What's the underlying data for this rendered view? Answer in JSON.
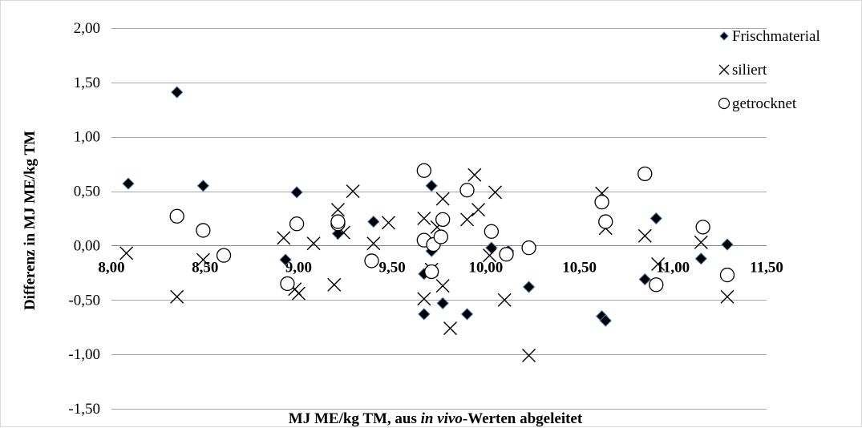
{
  "chart_data": {
    "type": "scatter",
    "xlabel_parts": [
      {
        "text": "MJ ME/kg TM, aus ",
        "italic": false
      },
      {
        "text": "in vivo",
        "italic": true
      },
      {
        "text": "-Werten abgeleitet",
        "italic": false
      }
    ],
    "ylabel": "Differenz in MJ ME/kg TM",
    "xlim": [
      8.0,
      11.5
    ],
    "ylim": [
      -1.5,
      2.0
    ],
    "x_ticks": [
      8.0,
      8.5,
      9.0,
      9.5,
      10.0,
      10.5,
      11.0,
      11.5
    ],
    "x_tick_labels": [
      "8,00",
      "8,50",
      "9,00",
      "9,50",
      "10,00",
      "10,50",
      "11,00",
      "11,50"
    ],
    "y_ticks": [
      2.0,
      1.5,
      1.0,
      0.5,
      0.0,
      -0.5,
      -1.0,
      -1.5
    ],
    "y_tick_labels": [
      "2,00",
      "1,50",
      "1,00",
      "0,50",
      "0,00",
      "-0,50",
      "-1,00",
      "-1,50"
    ],
    "grid": "horizontal",
    "legend_position": "right",
    "series": [
      {
        "name": "Frischmaterial",
        "marker": "diamond",
        "color": "#000000",
        "points": [
          [
            8.09,
            0.57
          ],
          [
            8.35,
            1.41
          ],
          [
            8.49,
            0.55
          ],
          [
            8.93,
            -0.13
          ],
          [
            8.99,
            0.49
          ],
          [
            9.21,
            0.11
          ],
          [
            9.4,
            0.22
          ],
          [
            9.67,
            -0.26
          ],
          [
            9.67,
            -0.63
          ],
          [
            9.71,
            -0.05
          ],
          [
            9.71,
            0.55
          ],
          [
            9.77,
            -0.53
          ],
          [
            9.9,
            -0.63
          ],
          [
            10.03,
            -0.02
          ],
          [
            10.12,
            -0.05
          ],
          [
            10.23,
            -0.38
          ],
          [
            10.62,
            -0.65
          ],
          [
            10.64,
            -0.69
          ],
          [
            10.85,
            -0.31
          ],
          [
            10.91,
            0.25
          ],
          [
            11.15,
            -0.12
          ],
          [
            11.29,
            0.01
          ]
        ]
      },
      {
        "name": "siliert",
        "marker": "x",
        "color": "#000000",
        "points": [
          [
            8.08,
            -0.07
          ],
          [
            8.35,
            -0.47
          ],
          [
            8.49,
            -0.13
          ],
          [
            8.92,
            0.07
          ],
          [
            8.98,
            -0.4
          ],
          [
            9.0,
            -0.44
          ],
          [
            9.08,
            0.02
          ],
          [
            9.19,
            -0.36
          ],
          [
            9.21,
            0.33
          ],
          [
            9.24,
            0.12
          ],
          [
            9.29,
            0.5
          ],
          [
            9.4,
            0.02
          ],
          [
            9.48,
            0.21
          ],
          [
            9.67,
            -0.49
          ],
          [
            9.67,
            0.25
          ],
          [
            9.71,
            -0.22
          ],
          [
            9.74,
            0.17
          ],
          [
            9.77,
            -0.37
          ],
          [
            9.77,
            0.43
          ],
          [
            9.81,
            -0.76
          ],
          [
            9.9,
            0.24
          ],
          [
            9.94,
            0.65
          ],
          [
            9.96,
            0.33
          ],
          [
            10.02,
            -0.09
          ],
          [
            10.05,
            0.49
          ],
          [
            10.1,
            -0.5
          ],
          [
            10.23,
            -1.01
          ],
          [
            10.62,
            0.48
          ],
          [
            10.64,
            0.16
          ],
          [
            10.85,
            0.09
          ],
          [
            10.92,
            -0.17
          ],
          [
            11.15,
            0.03
          ],
          [
            11.29,
            -0.47
          ]
        ]
      },
      {
        "name": "getrocknet",
        "marker": "circle",
        "color": "#000000",
        "points": [
          [
            8.35,
            0.27
          ],
          [
            8.49,
            0.14
          ],
          [
            8.6,
            -0.09
          ],
          [
            8.94,
            -0.35
          ],
          [
            8.99,
            0.2
          ],
          [
            9.21,
            0.2
          ],
          [
            9.21,
            0.22
          ],
          [
            9.39,
            -0.14
          ],
          [
            9.67,
            0.05
          ],
          [
            9.67,
            0.69
          ],
          [
            9.71,
            -0.24
          ],
          [
            9.72,
            0.01
          ],
          [
            9.76,
            0.08
          ],
          [
            9.77,
            0.24
          ],
          [
            9.9,
            0.51
          ],
          [
            10.03,
            0.13
          ],
          [
            10.11,
            -0.08
          ],
          [
            10.23,
            -0.02
          ],
          [
            10.62,
            0.4
          ],
          [
            10.64,
            0.22
          ],
          [
            10.85,
            0.66
          ],
          [
            10.91,
            -0.36
          ],
          [
            11.16,
            0.17
          ],
          [
            11.29,
            -0.27
          ]
        ]
      }
    ]
  }
}
